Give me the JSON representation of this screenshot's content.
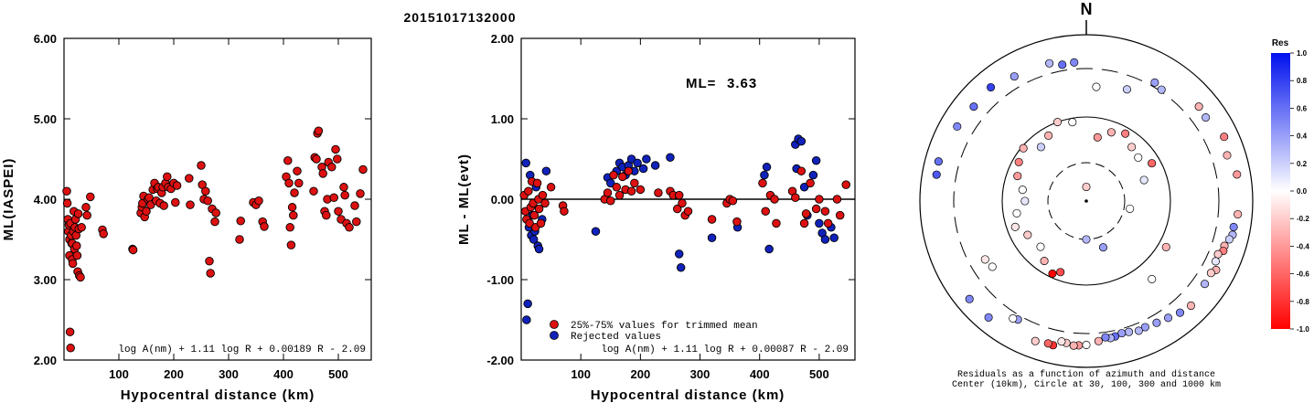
{
  "title": "20151017132000",
  "colors": {
    "accepted": "#dd1111",
    "rejected": "#1122bb"
  },
  "chart_data": [
    {
      "type": "scatter",
      "xlabel": "Hypocentral distance (km)",
      "ylabel": "ML(IASPEI)",
      "xlim": [
        0,
        560
      ],
      "ylim": [
        2.0,
        6.0
      ],
      "xticks": [
        "100",
        "200",
        "300",
        "400",
        "500"
      ],
      "yticks": [
        "2.00",
        "3.00",
        "4.00",
        "5.00",
        "6.00"
      ],
      "formula": "log A(nm) + 1.11 log R + 0.00189 R - 2.09",
      "points": [
        [
          5,
          4.1
        ],
        [
          6,
          3.95
        ],
        [
          7,
          3.75
        ],
        [
          8,
          3.6
        ],
        [
          9,
          3.68
        ],
        [
          10,
          3.5
        ],
        [
          10,
          3.3
        ],
        [
          11,
          2.35
        ],
        [
          12,
          2.15
        ],
        [
          12,
          3.7
        ],
        [
          13,
          3.55
        ],
        [
          14,
          3.45
        ],
        [
          15,
          3.25
        ],
        [
          15,
          3.45
        ],
        [
          16,
          3.2
        ],
        [
          17,
          3.6
        ],
        [
          18,
          3.85
        ],
        [
          19,
          3.38
        ],
        [
          20,
          3.65
        ],
        [
          21,
          3.75
        ],
        [
          22,
          3.55
        ],
        [
          23,
          3.42
        ],
        [
          24,
          3.3
        ],
        [
          25,
          3.1
        ],
        [
          26,
          3.82
        ],
        [
          27,
          3.63
        ],
        [
          28,
          3.05
        ],
        [
          30,
          3.03
        ],
        [
          32,
          3.65
        ],
        [
          40,
          3.9
        ],
        [
          42,
          3.8
        ],
        [
          48,
          4.03
        ],
        [
          70,
          3.62
        ],
        [
          72,
          3.57
        ],
        [
          125,
          3.38
        ],
        [
          126,
          3.37
        ],
        [
          140,
          3.83
        ],
        [
          142,
          3.9
        ],
        [
          143,
          3.95
        ],
        [
          145,
          4.04
        ],
        [
          147,
          3.78
        ],
        [
          150,
          3.85
        ],
        [
          153,
          4.0
        ],
        [
          155,
          4.02
        ],
        [
          158,
          3.93
        ],
        [
          162,
          4.12
        ],
        [
          165,
          4.2
        ],
        [
          168,
          3.98
        ],
        [
          170,
          4.13
        ],
        [
          172,
          4.15
        ],
        [
          175,
          3.95
        ],
        [
          178,
          4.08
        ],
        [
          180,
          4.15
        ],
        [
          182,
          3.92
        ],
        [
          185,
          4.2
        ],
        [
          188,
          4.28
        ],
        [
          190,
          4.15
        ],
        [
          195,
          4.13
        ],
        [
          200,
          4.2
        ],
        [
          203,
          3.96
        ],
        [
          206,
          4.17
        ],
        [
          228,
          4.26
        ],
        [
          230,
          3.93
        ],
        [
          250,
          4.42
        ],
        [
          252,
          4.18
        ],
        [
          255,
          4.0
        ],
        [
          258,
          4.1
        ],
        [
          262,
          3.98
        ],
        [
          265,
          3.23
        ],
        [
          267,
          3.08
        ],
        [
          270,
          3.88
        ],
        [
          275,
          3.72
        ],
        [
          277,
          3.83
        ],
        [
          320,
          3.5
        ],
        [
          322,
          3.73
        ],
        [
          345,
          3.96
        ],
        [
          350,
          3.93
        ],
        [
          355,
          3.98
        ],
        [
          362,
          3.72
        ],
        [
          365,
          3.66
        ],
        [
          405,
          4.28
        ],
        [
          408,
          4.48
        ],
        [
          410,
          4.2
        ],
        [
          412,
          3.65
        ],
        [
          414,
          3.43
        ],
        [
          416,
          3.9
        ],
        [
          418,
          3.8
        ],
        [
          420,
          4.08
        ],
        [
          425,
          4.35
        ],
        [
          428,
          4.2
        ],
        [
          455,
          4.1
        ],
        [
          457,
          4.52
        ],
        [
          460,
          4.5
        ],
        [
          462,
          4.82
        ],
        [
          464,
          4.85
        ],
        [
          470,
          4.4
        ],
        [
          472,
          4.32
        ],
        [
          475,
          3.85
        ],
        [
          478,
          3.8
        ],
        [
          480,
          4.0
        ],
        [
          482,
          4.46
        ],
        [
          488,
          4.4
        ],
        [
          492,
          4.02
        ],
        [
          495,
          4.62
        ],
        [
          498,
          4.5
        ],
        [
          500,
          3.85
        ],
        [
          505,
          3.75
        ],
        [
          510,
          4.15
        ],
        [
          512,
          4.05
        ],
        [
          515,
          3.7
        ],
        [
          520,
          3.65
        ],
        [
          530,
          3.92
        ],
        [
          533,
          3.72
        ],
        [
          540,
          4.07
        ],
        [
          545,
          4.37
        ]
      ]
    },
    {
      "type": "scatter",
      "xlabel": "Hypocentral distance (km)",
      "ylabel": "ML - ML(evt)",
      "xlim": [
        0,
        560
      ],
      "ylim": [
        -2.0,
        2.0
      ],
      "xticks": [
        "100",
        "200",
        "300",
        "400",
        "500"
      ],
      "yticks": [
        "-2.00",
        "-1.00",
        "0.00",
        "1.00",
        "2.00"
      ],
      "ml_label": "ML=",
      "ml_value": "3.63",
      "legend": [
        "25%-75% values for trimmed mean",
        "Rejected values"
      ],
      "formula": "log A(nm) + 1.11 log R + 0.00087 R - 2.09",
      "accepted": [
        [
          5,
          0.05
        ],
        [
          7,
          -0.15
        ],
        [
          9,
          -0.25
        ],
        [
          12,
          0.1
        ],
        [
          14,
          -0.3
        ],
        [
          16,
          -0.1
        ],
        [
          18,
          0.22
        ],
        [
          20,
          -0.05
        ],
        [
          22,
          -0.2
        ],
        [
          24,
          -0.35
        ],
        [
          27,
          0.2
        ],
        [
          29,
          0.0
        ],
        [
          30,
          -0.12
        ],
        [
          33,
          -0.3
        ],
        [
          36,
          0.05
        ],
        [
          40,
          -0.05
        ],
        [
          50,
          0.15
        ],
        [
          70,
          -0.08
        ],
        [
          72,
          -0.15
        ],
        [
          140,
          0.0
        ],
        [
          145,
          0.08
        ],
        [
          150,
          -0.02
        ],
        [
          155,
          0.3
        ],
        [
          160,
          0.15
        ],
        [
          165,
          0.05
        ],
        [
          170,
          0.28
        ],
        [
          175,
          0.12
        ],
        [
          180,
          0.35
        ],
        [
          185,
          0.1
        ],
        [
          190,
          0.2
        ],
        [
          200,
          0.12
        ],
        [
          230,
          0.08
        ],
        [
          250,
          0.1
        ],
        [
          255,
          0.05
        ],
        [
          262,
          -0.12
        ],
        [
          265,
          0.05
        ],
        [
          270,
          -0.05
        ],
        [
          275,
          -0.2
        ],
        [
          280,
          -0.15
        ],
        [
          320,
          -0.25
        ],
        [
          345,
          -0.05
        ],
        [
          350,
          0.0
        ],
        [
          355,
          -0.02
        ],
        [
          362,
          -0.28
        ],
        [
          405,
          0.2
        ],
        [
          410,
          -0.15
        ],
        [
          418,
          0.05
        ],
        [
          425,
          0.0
        ],
        [
          428,
          -0.3
        ],
        [
          455,
          0.1
        ],
        [
          460,
          0.02
        ],
        [
          470,
          0.35
        ],
        [
          475,
          -0.3
        ],
        [
          478,
          -0.18
        ],
        [
          485,
          0.2
        ],
        [
          495,
          -0.12
        ],
        [
          500,
          0.0
        ],
        [
          510,
          -0.15
        ],
        [
          515,
          -0.3
        ],
        [
          530,
          0.0
        ],
        [
          535,
          -0.2
        ],
        [
          545,
          0.18
        ]
      ],
      "rejected": [
        [
          8,
          0.45
        ],
        [
          9,
          -1.5
        ],
        [
          11,
          -1.3
        ],
        [
          13,
          -0.35
        ],
        [
          15,
          0.3
        ],
        [
          17,
          -0.45
        ],
        [
          19,
          -0.2
        ],
        [
          21,
          -0.5
        ],
        [
          23,
          -0.4
        ],
        [
          25,
          0.15
        ],
        [
          28,
          -0.58
        ],
        [
          30,
          -0.62
        ],
        [
          35,
          -0.25
        ],
        [
          42,
          0.35
        ],
        [
          125,
          -0.4
        ],
        [
          145,
          0.27
        ],
        [
          150,
          0.2
        ],
        [
          160,
          0.35
        ],
        [
          165,
          0.45
        ],
        [
          170,
          0.4
        ],
        [
          175,
          0.3
        ],
        [
          180,
          0.42
        ],
        [
          185,
          0.5
        ],
        [
          190,
          0.35
        ],
        [
          195,
          0.45
        ],
        [
          205,
          0.38
        ],
        [
          210,
          0.5
        ],
        [
          225,
          0.42
        ],
        [
          250,
          0.52
        ],
        [
          265,
          -0.68
        ],
        [
          268,
          -0.85
        ],
        [
          320,
          -0.48
        ],
        [
          363,
          -0.35
        ],
        [
          408,
          0.3
        ],
        [
          412,
          0.4
        ],
        [
          416,
          -0.62
        ],
        [
          460,
          0.68
        ],
        [
          462,
          0.38
        ],
        [
          465,
          0.75
        ],
        [
          470,
          0.72
        ],
        [
          475,
          0.15
        ],
        [
          480,
          -0.2
        ],
        [
          490,
          0.3
        ],
        [
          495,
          0.48
        ],
        [
          500,
          -0.3
        ],
        [
          505,
          -0.42
        ],
        [
          510,
          -0.5
        ],
        [
          520,
          -0.35
        ],
        [
          525,
          -0.48
        ]
      ]
    }
  ],
  "polar": {
    "north_label": "N",
    "caption_line1": "Residuals as a function of azimuth and distance",
    "caption_line2": "Center (10km), Circle at 30, 100, 300 and 1000 km",
    "colorbar_title": "Res",
    "colorbar_ticks": [
      "1.0",
      "0.8",
      "0.6",
      "0.4",
      "0.2",
      "0.0",
      "-0.2",
      "-0.4",
      "-0.6",
      "-0.8",
      "-1.0"
    ],
    "stations": [
      {
        "az": 5,
        "dist": 200,
        "res": 0.0
      },
      {
        "az": 20,
        "dist": 220,
        "res": 0.2
      },
      {
        "az": 30,
        "dist": 350,
        "res": 0.4
      },
      {
        "az": 34,
        "dist": 320,
        "res": 0.3
      },
      {
        "az": 50,
        "dist": 500,
        "res": -0.3
      },
      {
        "az": 55,
        "dist": 480,
        "res": 0.3
      },
      {
        "az": 65,
        "dist": 600,
        "res": -0.5
      },
      {
        "az": 72,
        "dist": 520,
        "res": -0.3
      },
      {
        "az": 80,
        "dist": 620,
        "res": -0.4
      },
      {
        "az": 95,
        "dist": 600,
        "res": -0.3
      },
      {
        "az": 100,
        "dist": 550,
        "res": 0.5
      },
      {
        "az": 103,
        "dist": 560,
        "res": 0.3
      },
      {
        "az": 105,
        "dist": 520,
        "res": 0.2
      },
      {
        "az": 108,
        "dist": 470,
        "res": -0.3
      },
      {
        "az": 110,
        "dist": 480,
        "res": -0.5
      },
      {
        "az": 112,
        "dist": 420,
        "res": -0.2
      },
      {
        "az": 115,
        "dist": 430,
        "res": 0.1
      },
      {
        "az": 118,
        "dist": 500,
        "res": -0.3
      },
      {
        "az": 120,
        "dist": 450,
        "res": -0.2
      },
      {
        "az": 125,
        "dist": 460,
        "res": 0.3
      },
      {
        "az": 135,
        "dist": 520,
        "res": -0.3
      },
      {
        "az": 140,
        "dist": 480,
        "res": 0.5
      },
      {
        "az": 145,
        "dist": 430,
        "res": 0.4
      },
      {
        "az": 150,
        "dist": 400,
        "res": 0.4
      },
      {
        "az": 155,
        "dist": 380,
        "res": 0.4
      },
      {
        "az": 158,
        "dist": 390,
        "res": 0.3
      },
      {
        "az": 162,
        "dist": 360,
        "res": 0.3
      },
      {
        "az": 165,
        "dist": 350,
        "res": 0.4
      },
      {
        "az": 168,
        "dist": 370,
        "res": 0.6
      },
      {
        "az": 170,
        "dist": 380,
        "res": 0.3
      },
      {
        "az": 172,
        "dist": 360,
        "res": 0.5
      },
      {
        "az": 175,
        "dist": 400,
        "res": -0.3
      },
      {
        "az": 180,
        "dist": 450,
        "res": 0.0
      },
      {
        "az": 183,
        "dist": 460,
        "res": -0.4
      },
      {
        "az": 185,
        "dist": 470,
        "res": -0.3
      },
      {
        "az": 188,
        "dist": 440,
        "res": -0.2
      },
      {
        "az": 190,
        "dist": 430,
        "res": -0.1
      },
      {
        "az": 193,
        "dist": 520,
        "res": -0.8
      },
      {
        "az": 195,
        "dist": 510,
        "res": -0.6
      },
      {
        "az": 200,
        "dist": 540,
        "res": -0.2
      },
      {
        "az": 210,
        "dist": 350,
        "res": 0.4
      },
      {
        "az": 212,
        "dist": 370,
        "res": 0.0
      },
      {
        "az": 220,
        "dist": 600,
        "res": 0.5
      },
      {
        "az": 230,
        "dist": 610,
        "res": 0.5
      },
      {
        "az": 235,
        "dist": 200,
        "res": 0.0
      },
      {
        "az": 240,
        "dist": 210,
        "res": -0.1
      },
      {
        "az": 280,
        "dist": 600,
        "res": 0.7
      },
      {
        "az": 285,
        "dist": 620,
        "res": 0.6
      },
      {
        "az": 300,
        "dist": 540,
        "res": 0.5
      },
      {
        "az": 310,
        "dist": 500,
        "res": 0.6
      },
      {
        "az": 320,
        "dist": 530,
        "res": 0.8
      },
      {
        "az": 330,
        "dist": 450,
        "res": 0.4
      },
      {
        "az": 345,
        "dist": 430,
        "res": 0.3
      },
      {
        "az": 350,
        "dist": 370,
        "res": 0.6
      },
      {
        "az": 355,
        "dist": 380,
        "res": 0.5
      },
      {
        "az": 200,
        "dist": 80,
        "res": -0.7
      },
      {
        "az": 205,
        "dist": 90,
        "res": -1.0
      },
      {
        "az": 215,
        "dist": 75,
        "res": -0.3
      },
      {
        "az": 225,
        "dist": 60,
        "res": 0.0
      },
      {
        "az": 240,
        "dist": 65,
        "res": -0.2
      },
      {
        "az": 250,
        "dist": 80,
        "res": -0.1
      },
      {
        "az": 260,
        "dist": 70,
        "res": 0.0
      },
      {
        "az": 270,
        "dist": 55,
        "res": 0.1
      },
      {
        "az": 280,
        "dist": 60,
        "res": 0.0
      },
      {
        "az": 290,
        "dist": 75,
        "res": -0.4
      },
      {
        "az": 300,
        "dist": 85,
        "res": -0.5
      },
      {
        "az": 310,
        "dist": 95,
        "res": -0.3
      },
      {
        "az": 320,
        "dist": 70,
        "res": 0.2
      },
      {
        "az": 330,
        "dist": 80,
        "res": -0.3
      },
      {
        "az": 340,
        "dist": 100,
        "res": -0.2
      },
      {
        "az": 350,
        "dist": 90,
        "res": 0.0
      },
      {
        "az": 10,
        "dist": 60,
        "res": -0.4
      },
      {
        "az": 20,
        "dist": 75,
        "res": -0.3
      },
      {
        "az": 30,
        "dist": 85,
        "res": -0.5
      },
      {
        "az": 40,
        "dist": 70,
        "res": -0.2
      },
      {
        "az": 50,
        "dist": 65,
        "res": 0.0
      },
      {
        "az": 60,
        "dist": 80,
        "res": -0.6
      },
      {
        "az": 70,
        "dist": 55,
        "res": 0.1
      },
      {
        "az": 120,
        "dist": 120,
        "res": -0.3
      },
      {
        "az": 140,
        "dist": 150,
        "res": 0.0
      },
      {
        "az": 160,
        "dist": 40,
        "res": 0.4
      },
      {
        "az": 180,
        "dist": 30,
        "res": 0.3
      },
      {
        "az": 100,
        "dist": 35,
        "res": 0.0
      },
      {
        "az": 0,
        "dist": 15,
        "res": -0.2
      }
    ]
  }
}
